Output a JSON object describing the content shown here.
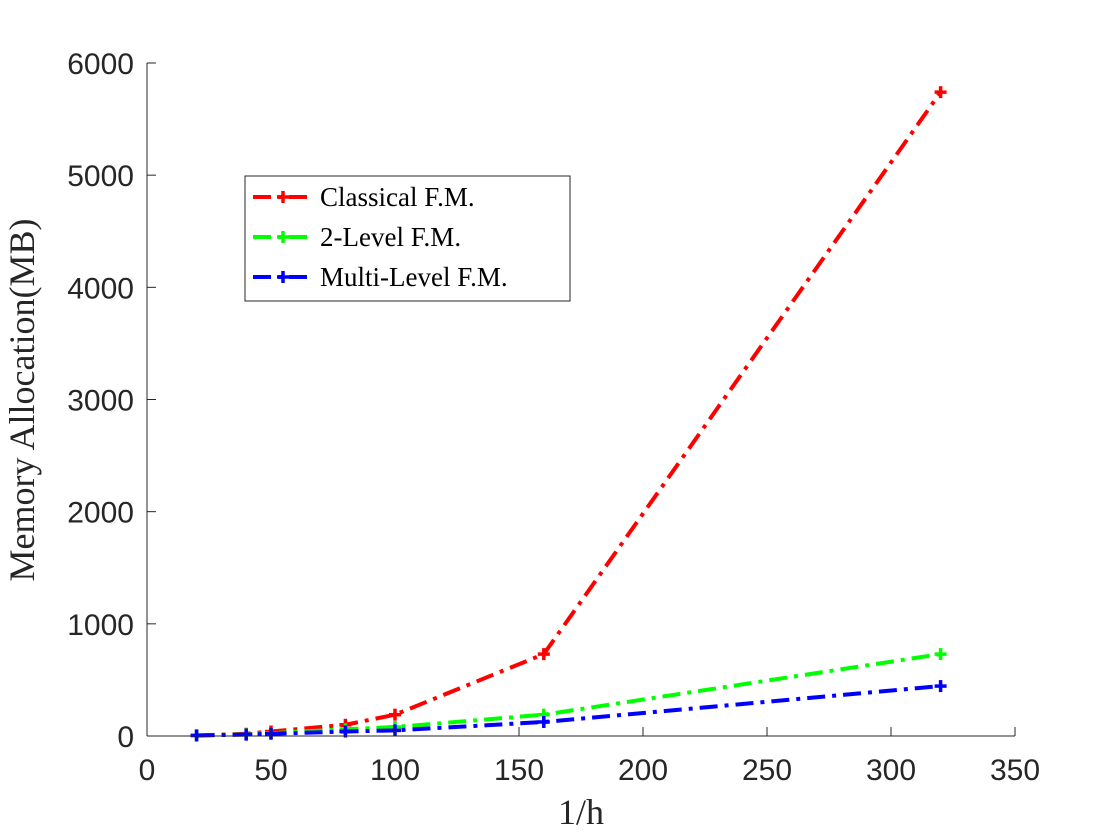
{
  "chart_data": {
    "type": "line",
    "title": "",
    "xlabel": "1/h",
    "ylabel": "Memory Allocation(MB)",
    "xlim": [
      0,
      350
    ],
    "ylim": [
      0,
      6000
    ],
    "xticks": [
      0,
      50,
      100,
      150,
      200,
      250,
      300,
      350
    ],
    "yticks": [
      0,
      1000,
      2000,
      3000,
      4000,
      5000,
      6000
    ],
    "xtick_labels": [
      "0",
      "50",
      "100",
      "150",
      "200",
      "250",
      "300",
      "350"
    ],
    "ytick_labels": [
      "0",
      "1000",
      "2000",
      "3000",
      "4000",
      "5000",
      "6000"
    ],
    "grid": false,
    "legend_position": "upper-left",
    "x": [
      20,
      40,
      50,
      80,
      100,
      160,
      320
    ],
    "series": [
      {
        "name": "Classical F.M.",
        "color": "#ff0000",
        "values": [
          5,
          20,
          40,
          100,
          190,
          730,
          5740
        ]
      },
      {
        "name": "2-Level F.M.",
        "color": "#00ff00",
        "values": [
          5,
          15,
          25,
          60,
          80,
          190,
          730
        ]
      },
      {
        "name": "Multi-Level F.M.",
        "color": "#0000ff",
        "values": [
          5,
          12,
          20,
          40,
          50,
          125,
          445
        ]
      }
    ]
  }
}
